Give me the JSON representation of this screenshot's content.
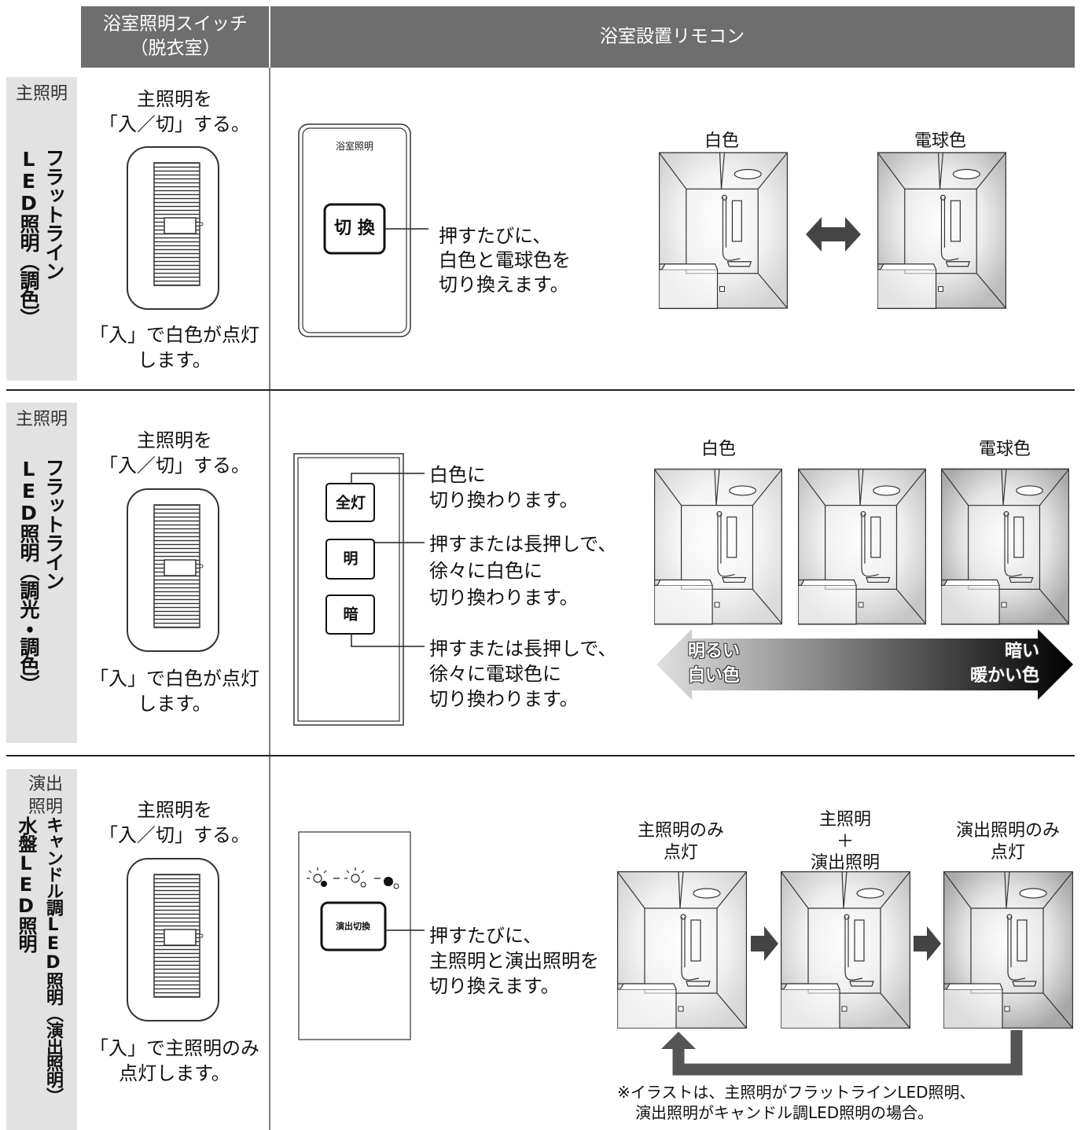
{
  "header": {
    "switch_column": [
      "浴室照明スイッチ",
      "（脱衣室）"
    ],
    "remote_column": "浴室設置リモコン"
  },
  "rows": [
    {
      "category": [
        "主照明"
      ],
      "fixture": [
        "フラットライン",
        "LED照明（調色）"
      ],
      "switch": {
        "top": [
          "主照明を",
          "「入／切」する。"
        ],
        "bottom": [
          "「入」で白色が点灯",
          "します。"
        ]
      },
      "remote": {
        "title": "浴室照明",
        "buttons": [
          {
            "label": "切 換",
            "description": [
              "押すたびに、",
              "白色と電球色を",
              "切り換えます。"
            ]
          }
        ]
      },
      "scenes": [
        [
          "白色"
        ],
        [
          "電球色"
        ]
      ]
    },
    {
      "category": [
        "主照明"
      ],
      "fixture": [
        "フラットライン",
        "LED照明（調光・調色）"
      ],
      "switch": {
        "top": [
          "主照明を",
          "「入／切」する。"
        ],
        "bottom": [
          "「入」で白色が点灯",
          "します。"
        ]
      },
      "remote": {
        "buttons": [
          {
            "label": "全灯",
            "description": [
              "白色に",
              "切り換わります。"
            ]
          },
          {
            "label": "明",
            "description": [
              "押すまたは長押しで、",
              "徐々に白色に",
              "切り換わります。"
            ]
          },
          {
            "label": "暗",
            "description": [
              "押すまたは長押しで、",
              "徐々に電球色に",
              "切り換わります。"
            ]
          }
        ]
      },
      "scenes": [
        [
          "白色"
        ],
        [
          "電球色"
        ]
      ],
      "scale": {
        "left": [
          "明るい",
          "白い色"
        ],
        "right": [
          "暗い",
          "暖かい色"
        ]
      }
    },
    {
      "category": [
        "演出",
        "照明"
      ],
      "fixture": [
        "キャンドル調LED照明（演出照明）",
        "水盤LED照明"
      ],
      "switch": {
        "top": [
          "主照明を",
          "「入／切」する。"
        ],
        "bottom": [
          "「入」で主照明のみ",
          "点灯します。"
        ]
      },
      "remote": {
        "buttons": [
          {
            "label": "演出切換",
            "description": [
              "押すたびに、",
              "主照明と演出照明を",
              "切り換えます。"
            ]
          }
        ]
      },
      "scenes": [
        [
          "主照明のみ",
          "点灯"
        ],
        [
          "主照明",
          "＋",
          "演出照明"
        ],
        [
          "演出照明のみ",
          "点灯"
        ]
      ],
      "note": [
        "※イラストは、主照明がフラットラインLED照明、",
        "演出照明がキャンドル調LED照明の場合。"
      ]
    }
  ]
}
